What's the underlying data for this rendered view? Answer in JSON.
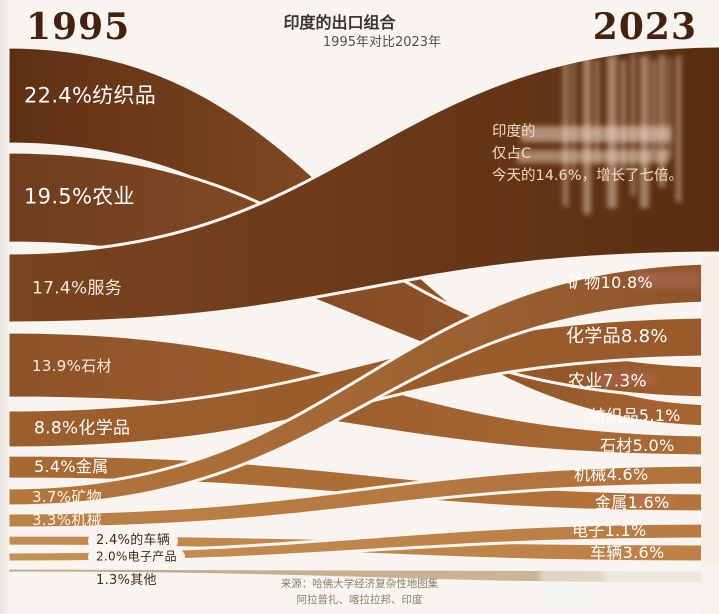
{
  "header": {
    "year_left": "1995",
    "year_right": "2023",
    "title": "印度的出口组合",
    "subtitle": "1995年对比2023年"
  },
  "annotation": {
    "line1": "印度的",
    "line2": "仅占C",
    "line3": "今天的14.6%，增长了七倍。"
  },
  "footer": {
    "source": "来源：哈佛大学经济复杂性地图集",
    "location": "阿拉普扎、喀拉拉邦、印度"
  },
  "colors": {
    "background": "#f8f5f0",
    "year_text": "#44220d",
    "title_text": "#3a3431",
    "subtitle_text": "#55504b",
    "source_text": "#8d7d68",
    "dark_label_text": "#402c18",
    "light_label_text": "#ffffff"
  },
  "chart_data": {
    "type": "sankey",
    "title": "印度的出口组合",
    "subtitle": "1995年对比2023年",
    "years": [
      "1995",
      "2023"
    ],
    "unit": "%",
    "annotation_highlight": "14.6%",
    "flows": [
      {
        "category": "纺织品",
        "pct_1995": 22.4,
        "pct_2023": 5.1,
        "left_label": "22.4%纺织品",
        "right_label": "纺织品5.1%",
        "color_left": "#5e3013",
        "color_right": "#aa6731"
      },
      {
        "category": "农业",
        "pct_1995": 19.5,
        "pct_2023": 7.3,
        "left_label": "19.5%农业",
        "right_label": "农业7.3%",
        "color_left": "#6f3d1e",
        "color_right": "#a05f2e"
      },
      {
        "category": "服务",
        "pct_1995": 17.4,
        "pct_2023": null,
        "left_label": "17.4%服务",
        "right_label": "",
        "color_left": "#7a4420",
        "color_right": "#5a2d10"
      },
      {
        "category": "石材",
        "pct_1995": 13.9,
        "pct_2023": 5.0,
        "left_label": "13.9%石材",
        "right_label": "石材5.0%",
        "color_left": "#8d5227",
        "color_right": "#ad6c35"
      },
      {
        "category": "化学品",
        "pct_1995": 8.8,
        "pct_2023": 8.8,
        "left_label": "8.8%化学品",
        "right_label": "化学品8.8%",
        "color_left": "#9c5e2d",
        "color_right": "#9a5a2c"
      },
      {
        "category": "金属",
        "pct_1995": 5.4,
        "pct_2023": 1.6,
        "left_label": "5.4%金属",
        "right_label": "金属1.6%",
        "color_left": "#a76831",
        "color_right": "#b4743c"
      },
      {
        "category": "矿物",
        "pct_1995": 3.7,
        "pct_2023": 10.8,
        "left_label": "3.7%矿物",
        "right_label": "矿物10.8%",
        "color_left": "#b5793f",
        "color_right": "#8d5329"
      },
      {
        "category": "机械",
        "pct_1995": 3.3,
        "pct_2023": 4.6,
        "left_label": "3.3%机械",
        "right_label": "机械4.6%",
        "color_left": "#bc8248",
        "color_right": "#b0713a"
      },
      {
        "category": "车辆",
        "pct_1995": 2.4,
        "pct_2023": 3.6,
        "left_label": "2.4%的车辆",
        "right_label": "车辆3.6%",
        "color_left": "#c28b50",
        "color_right": "#bd8045"
      },
      {
        "category": "电子产品",
        "pct_1995": 2.0,
        "pct_2023": 1.1,
        "left_label": "2.0%电子产品",
        "right_label": "电子1.1%",
        "color_left": "#c59055",
        "color_right": "#b97a41"
      },
      {
        "category": "其他",
        "pct_1995": 1.3,
        "pct_2023": null,
        "left_label": "1.3%其他",
        "right_label": "",
        "color_left": "#c0aa8c",
        "color_right": "#ccb89a"
      }
    ],
    "source": "来源：哈佛大学经济复杂性地图集",
    "location": "阿拉普扎、喀拉拉邦、印度"
  }
}
